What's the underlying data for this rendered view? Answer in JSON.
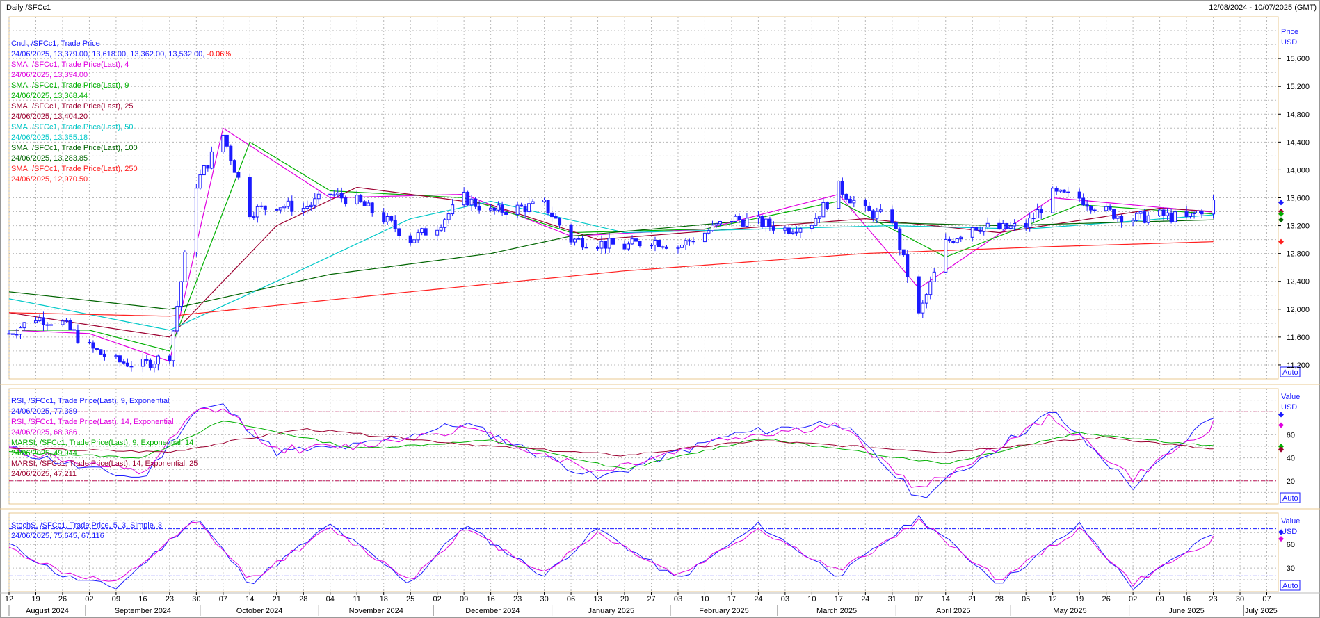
{
  "header": {
    "left": "Daily /SFCc1",
    "right": "12/08/2024 - 10/07/2025 (GMT)"
  },
  "axes": {
    "price_title": [
      "Price",
      "USD"
    ],
    "value_title": [
      "Value",
      "USD"
    ],
    "auto_label": "Auto",
    "price_ticks": [
      "15,600",
      "15,200",
      "14,800",
      "14,400",
      "14,000",
      "13,600",
      "13,200",
      "12,800",
      "12,400",
      "12,000",
      "11,600",
      "11,200"
    ],
    "rsi_ticks": [
      "60",
      "40",
      "20"
    ],
    "stoch_ticks": [
      "60",
      "30"
    ]
  },
  "legend_price": [
    {
      "text": "Cndl, /SFCc1, Trade Price",
      "color": "#1a1aff"
    },
    {
      "text": "24/06/2025, 13,379.00, 13,618.00, 13,362.00, 13,532.00,",
      "color": "#1a1aff",
      "suffix": "-0.06%",
      "suffix_color": "#ff0000"
    },
    {
      "text": "SMA, /SFCc1, Trade Price(Last),  4",
      "color": "#e000e0"
    },
    {
      "text": "24/06/2025, 13,394.00",
      "color": "#e000e0"
    },
    {
      "text": "SMA, /SFCc1, Trade Price(Last),  9",
      "color": "#00b000"
    },
    {
      "text": "24/06/2025, 13,368.44",
      "color": "#00b000"
    },
    {
      "text": "SMA, /SFCc1, Trade Price(Last),  25",
      "color": "#9c0030"
    },
    {
      "text": "24/06/2025, 13,404.20",
      "color": "#9c0030"
    },
    {
      "text": "SMA, /SFCc1, Trade Price(Last),  50",
      "color": "#00c8c8"
    },
    {
      "text": "24/06/2025, 13,355.18",
      "color": "#00c8c8"
    },
    {
      "text": "SMA, /SFCc1, Trade Price(Last),  100",
      "color": "#006400"
    },
    {
      "text": "24/06/2025, 13,283.85",
      "color": "#006400"
    },
    {
      "text": "SMA, /SFCc1, Trade Price(Last),  250",
      "color": "#ff2020"
    },
    {
      "text": "24/06/2025, 12,970.50",
      "color": "#ff2020"
    }
  ],
  "legend_rsi": [
    {
      "text": "RSI, /SFCc1, Trade Price(Last),  9, Exponential",
      "color": "#1a1aff"
    },
    {
      "text": "24/06/2025, 77.389",
      "color": "#1a1aff"
    },
    {
      "text": "RSI, /SFCc1, Trade Price(Last),  14, Exponential",
      "color": "#e000e0"
    },
    {
      "text": "24/06/2025, 68.386",
      "color": "#e000e0"
    },
    {
      "text": "MARSI, /SFCc1, Trade Price(Last),  9, Exponential, 14",
      "color": "#00b000"
    },
    {
      "text": "24/06/2025, 49.944",
      "color": "#00b000"
    },
    {
      "text": "MARSI, /SFCc1, Trade Price(Last),  14, Exponential, 25",
      "color": "#9c0030"
    },
    {
      "text": "24/06/2025, 47.211",
      "color": "#9c0030"
    }
  ],
  "legend_stoch": [
    {
      "text": "StochS, /SFCc1, Trade Price,  5, 3, Simple, 3",
      "color": "#1a1aff"
    },
    {
      "text": "24/06/2025, 75.645, 67.116",
      "color": "#1a1aff"
    }
  ],
  "x_days": [
    "12",
    "19",
    "26",
    "02",
    "09",
    "16",
    "23",
    "30",
    "07",
    "14",
    "21",
    "28",
    "04",
    "11",
    "18",
    "25",
    "02",
    "09",
    "16",
    "23",
    "30",
    "06",
    "13",
    "20",
    "27",
    "03",
    "10",
    "17",
    "24",
    "03",
    "10",
    "17",
    "24",
    "31",
    "07",
    "14",
    "21",
    "28",
    "05",
    "12",
    "19",
    "26",
    "02",
    "09",
    "16",
    "23",
    "30",
    "07"
  ],
  "x_months": [
    "August 2024",
    "September 2024",
    "October 2024",
    "November 2024",
    "December 2024",
    "January 2025",
    "February 2025",
    "March 2025",
    "April 2025",
    "May 2025",
    "June 2025",
    "July 2025"
  ],
  "colors": {
    "candle": "#1a1aff",
    "sma4": "#e000e0",
    "sma9": "#00b000",
    "sma25": "#9c0030",
    "sma50": "#00c8c8",
    "sma100": "#006400",
    "sma250": "#ff2020",
    "grid": "#b8b8b8",
    "frame": "#e8c890"
  },
  "chart_data": [
    {
      "type": "candlestick",
      "ylabel": "Price USD",
      "ylim": [
        11000,
        16200
      ],
      "series": [
        {
          "name": "Cndl, /SFCc1, Trade Price",
          "x": [
            "2024-08-12",
            "2024-08-19",
            "2024-08-26",
            "2024-09-02",
            "2024-09-09",
            "2024-09-16",
            "2024-09-23",
            "2024-09-30",
            "2024-10-07",
            "2024-10-14",
            "2024-10-21",
            "2024-10-28",
            "2024-11-04",
            "2024-11-11",
            "2024-11-18",
            "2024-11-25",
            "2024-12-02",
            "2024-12-09",
            "2024-12-16",
            "2024-12-23",
            "2024-12-30",
            "2025-01-06",
            "2025-01-13",
            "2025-01-20",
            "2025-01-27",
            "2025-02-03",
            "2025-02-10",
            "2025-02-17",
            "2025-02-24",
            "2025-03-03",
            "2025-03-10",
            "2025-03-17",
            "2025-03-24",
            "2025-03-31",
            "2025-04-07",
            "2025-04-14",
            "2025-04-21",
            "2025-04-28",
            "2025-05-05",
            "2025-05-12",
            "2025-05-19",
            "2025-05-26",
            "2025-06-02",
            "2025-06-09",
            "2025-06-16",
            "2025-06-23"
          ],
          "close": [
            11650,
            11880,
            11800,
            11450,
            11250,
            11200,
            11350,
            13800,
            14500,
            13400,
            13500,
            13450,
            13650,
            13550,
            13300,
            13000,
            13200,
            13600,
            13400,
            13450,
            13500,
            13000,
            12950,
            12900,
            13000,
            12900,
            13100,
            13300,
            13250,
            13150,
            13250,
            13750,
            13400,
            13300,
            11900,
            12950,
            13200,
            13150,
            13200,
            13650,
            13600,
            13400,
            13300,
            13350,
            13300,
            13532
          ]
        },
        {
          "name": "SMA 4",
          "x": [
            "2024-08-12",
            "2024-09-02",
            "2024-09-23",
            "2024-10-07",
            "2024-11-04",
            "2024-12-09",
            "2025-01-06",
            "2025-02-10",
            "2025-03-17",
            "2025-04-07",
            "2025-05-12",
            "2025-06-23"
          ],
          "values": [
            11700,
            11650,
            11250,
            14600,
            13600,
            13650,
            13050,
            13150,
            13650,
            12300,
            13600,
            13394
          ]
        },
        {
          "name": "SMA 9",
          "x": [
            "2024-08-12",
            "2024-09-02",
            "2024-09-23",
            "2024-10-14",
            "2024-11-04",
            "2024-12-09",
            "2025-01-06",
            "2025-02-10",
            "2025-03-17",
            "2025-04-14",
            "2025-05-19",
            "2025-06-23"
          ],
          "values": [
            11700,
            11700,
            11400,
            14400,
            13700,
            13600,
            13100,
            13150,
            13550,
            12750,
            13500,
            13368
          ]
        },
        {
          "name": "SMA 25",
          "x": [
            "2024-08-12",
            "2024-09-23",
            "2024-10-21",
            "2024-11-11",
            "2024-12-16",
            "2025-01-13",
            "2025-02-17",
            "2025-03-24",
            "2025-04-28",
            "2025-06-09",
            "2025-06-23"
          ],
          "values": [
            11950,
            11600,
            13200,
            13750,
            13500,
            13000,
            13150,
            13300,
            13100,
            13450,
            13404
          ]
        },
        {
          "name": "SMA 50",
          "x": [
            "2024-08-12",
            "2024-09-23",
            "2024-10-21",
            "2024-11-25",
            "2024-12-16",
            "2025-01-20",
            "2025-02-24",
            "2025-03-31",
            "2025-05-05",
            "2025-06-23"
          ],
          "values": [
            12150,
            11700,
            12400,
            13300,
            13550,
            13100,
            13150,
            13200,
            13150,
            13355
          ]
        },
        {
          "name": "SMA 100",
          "x": [
            "2024-08-12",
            "2024-09-23",
            "2024-11-04",
            "2024-12-16",
            "2025-01-06",
            "2025-02-17",
            "2025-03-24",
            "2025-04-28",
            "2025-06-23"
          ],
          "values": [
            12250,
            12000,
            12500,
            12800,
            13050,
            13250,
            13250,
            13200,
            13284
          ]
        },
        {
          "name": "SMA 250",
          "x": [
            "2024-08-12",
            "2024-09-23",
            "2024-11-25",
            "2025-01-20",
            "2025-03-24",
            "2025-05-12",
            "2025-06-23"
          ],
          "values": [
            11950,
            11900,
            12250,
            12550,
            12800,
            12900,
            12970
          ]
        }
      ]
    },
    {
      "type": "line",
      "ylim": [
        0,
        100
      ],
      "hlines": [
        80,
        20
      ],
      "series": [
        {
          "name": "RSI, /SFCc1, Trade Price(Last),  9, Exponential",
          "x": [
            "2024-08-12",
            "2024-09-02",
            "2024-09-16",
            "2024-09-30",
            "2024-10-07",
            "2024-10-21",
            "2024-11-11",
            "2024-12-09",
            "2025-01-13",
            "2025-02-17",
            "2025-03-17",
            "2025-04-07",
            "2025-05-12",
            "2025-06-02",
            "2025-06-23"
          ],
          "values": [
            48,
            30,
            22,
            82,
            85,
            45,
            50,
            70,
            22,
            60,
            72,
            5,
            80,
            15,
            77.389
          ]
        },
        {
          "name": "RSI, /SFCc1, Trade Price(Last),  14, Exponential",
          "x": [
            "2024-08-12",
            "2024-09-02",
            "2024-09-16",
            "2024-09-30",
            "2024-10-07",
            "2024-10-21",
            "2024-11-11",
            "2024-12-09",
            "2025-01-13",
            "2025-02-17",
            "2025-03-17",
            "2025-04-07",
            "2025-05-12",
            "2025-06-02",
            "2025-06-23"
          ],
          "values": [
            48,
            34,
            26,
            80,
            82,
            47,
            50,
            66,
            28,
            58,
            68,
            12,
            76,
            22,
            68.386
          ]
        },
        {
          "name": "MARSI, /SFCc1, Trade Price(Last),  9, Exponential, 14",
          "x": [
            "2024-08-12",
            "2024-09-16",
            "2024-10-07",
            "2024-11-11",
            "2024-12-16",
            "2025-01-20",
            "2025-02-24",
            "2025-04-14",
            "2025-05-19",
            "2025-06-23"
          ],
          "values": [
            45,
            40,
            72,
            48,
            55,
            30,
            57,
            35,
            62,
            49.944
          ]
        },
        {
          "name": "MARSI, /SFCc1, Trade Price(Last),  14, Exponential, 25",
          "x": [
            "2024-08-12",
            "2024-09-23",
            "2024-10-28",
            "2024-12-16",
            "2025-01-20",
            "2025-02-24",
            "2025-04-14",
            "2025-05-26",
            "2025-06-23"
          ],
          "values": [
            48,
            45,
            65,
            50,
            42,
            55,
            45,
            58,
            47.211
          ]
        }
      ]
    },
    {
      "type": "line",
      "ylim": [
        0,
        100
      ],
      "hlines": [
        80,
        20
      ],
      "series": [
        {
          "name": "StochS %K",
          "x": [
            "2024-08-12",
            "2024-08-26",
            "2024-09-09",
            "2024-09-30",
            "2024-10-14",
            "2024-11-04",
            "2024-11-25",
            "2024-12-09",
            "2024-12-30",
            "2025-01-13",
            "2025-02-03",
            "2025-02-24",
            "2025-03-17",
            "2025-04-07",
            "2025-04-28",
            "2025-05-19",
            "2025-06-02",
            "2025-06-23"
          ],
          "values": [
            60,
            20,
            5,
            95,
            10,
            85,
            10,
            85,
            20,
            80,
            15,
            85,
            20,
            95,
            10,
            85,
            5,
            75.645
          ]
        },
        {
          "name": "StochS %D",
          "x": [
            "2024-08-12",
            "2024-08-26",
            "2024-09-09",
            "2024-09-30",
            "2024-10-14",
            "2024-11-04",
            "2024-11-25",
            "2024-12-09",
            "2024-12-30",
            "2025-01-13",
            "2025-02-03",
            "2025-02-24",
            "2025-03-17",
            "2025-04-07",
            "2025-04-28",
            "2025-05-19",
            "2025-06-02",
            "2025-06-23"
          ],
          "values": [
            55,
            25,
            10,
            90,
            15,
            80,
            15,
            80,
            25,
            75,
            20,
            80,
            25,
            90,
            15,
            80,
            10,
            67.116
          ]
        }
      ]
    }
  ]
}
